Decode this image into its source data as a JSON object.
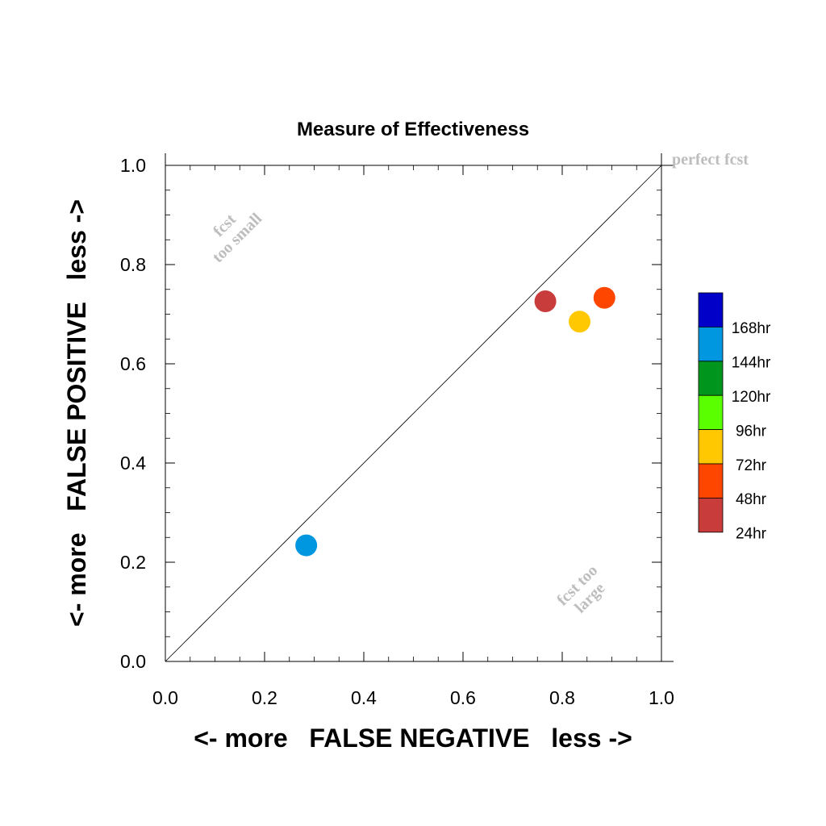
{
  "chart_data": {
    "type": "scatter",
    "title": "Measure of Effectiveness",
    "xlabel": "<- more   FALSE NEGATIVE   less ->",
    "ylabel": "<- more   FALSE POSITIVE   less ->",
    "xlim": [
      0.0,
      1.0
    ],
    "ylim": [
      0.0,
      1.0
    ],
    "x_ticks": [
      "0.0",
      "0.2",
      "0.4",
      "0.6",
      "0.8",
      "1.0"
    ],
    "y_ticks": [
      "0.0",
      "0.2",
      "0.4",
      "0.6",
      "0.8",
      "1.0"
    ],
    "tick_values": [
      0.0,
      0.2,
      0.4,
      0.6,
      0.8,
      1.0
    ],
    "grid": false,
    "diagonal_line": true,
    "annotations": {
      "perfect": "perfect fcst",
      "too_small_line1": "fcst",
      "too_small_line2": "too small",
      "too_large_line1": "fcst too",
      "too_large_line2": "large"
    },
    "legend": {
      "placement": "right",
      "entries": [
        {
          "label": "168hr",
          "color": "#0000c8"
        },
        {
          "label": "144hr",
          "color": "#0096e0"
        },
        {
          "label": "120hr",
          "color": "#00961e"
        },
        {
          "label": "96hr",
          "color": "#5aff00"
        },
        {
          "label": "72hr",
          "color": "#ffc800"
        },
        {
          "label": "48hr",
          "color": "#ff4600"
        },
        {
          "label": "24hr",
          "color": "#c83c3c"
        }
      ]
    },
    "series": [
      {
        "lead": "24hr",
        "x": 0.766,
        "y": 0.726,
        "color": "#c83c3c"
      },
      {
        "lead": "48hr",
        "x": 0.885,
        "y": 0.733,
        "color": "#ff4600"
      },
      {
        "lead": "72hr",
        "x": 0.835,
        "y": 0.685,
        "color": "#ffc800"
      },
      {
        "lead": "144hr",
        "x": 0.284,
        "y": 0.234,
        "color": "#0096e0"
      }
    ]
  }
}
